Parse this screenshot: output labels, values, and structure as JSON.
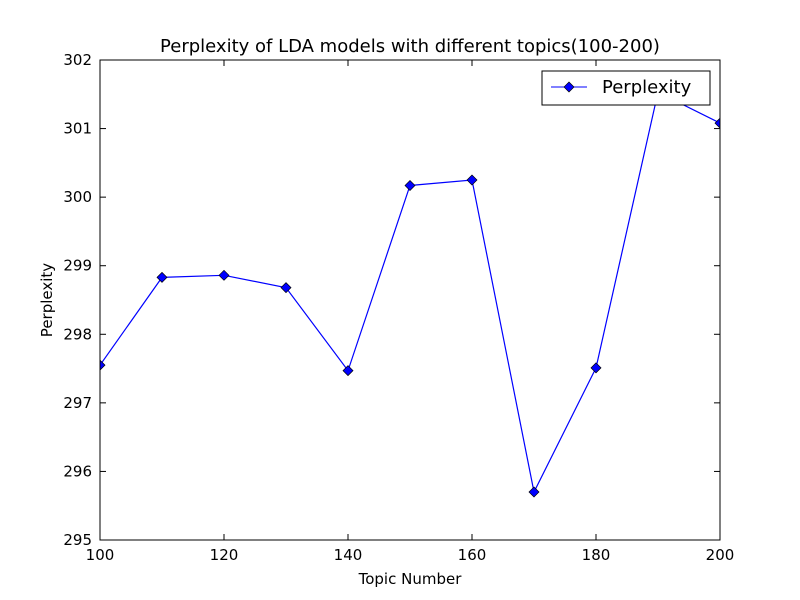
{
  "chart_data": {
    "type": "line",
    "title": "Perplexity of LDA models with different topics(100-200)",
    "xlabel": "Topic Number",
    "ylabel": "Perplexity",
    "xlim": [
      100,
      200
    ],
    "ylim": [
      295,
      302
    ],
    "xticks": [
      "100",
      "120",
      "140",
      "160",
      "180",
      "200"
    ],
    "yticks": [
      "295",
      "296",
      "297",
      "298",
      "299",
      "300",
      "301",
      "302"
    ],
    "grid": false,
    "legend_position": "top-right",
    "series": [
      {
        "name": "Perplexity",
        "color": "#0000ff",
        "marker": "diamond",
        "x": [
          100,
          110,
          120,
          130,
          140,
          150,
          160,
          170,
          180,
          190,
          200
        ],
        "y": [
          297.55,
          298.83,
          298.86,
          298.68,
          297.47,
          300.17,
          300.25,
          295.7,
          297.51,
          301.53,
          301.08
        ]
      }
    ]
  }
}
